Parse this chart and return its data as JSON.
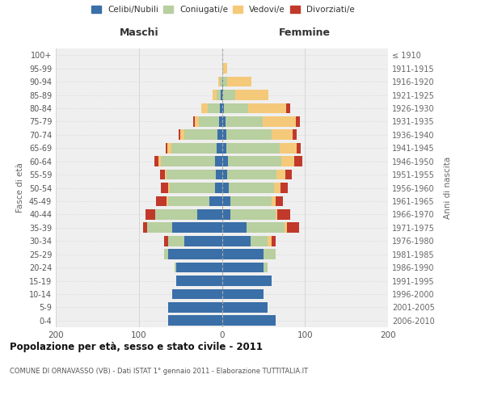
{
  "age_groups": [
    "0-4",
    "5-9",
    "10-14",
    "15-19",
    "20-24",
    "25-29",
    "30-34",
    "35-39",
    "40-44",
    "45-49",
    "50-54",
    "55-59",
    "60-64",
    "65-69",
    "70-74",
    "75-79",
    "80-84",
    "85-89",
    "90-94",
    "95-99",
    "100+"
  ],
  "birth_years": [
    "2006-2010",
    "2001-2005",
    "1996-2000",
    "1991-1995",
    "1986-1990",
    "1981-1985",
    "1976-1980",
    "1971-1975",
    "1966-1970",
    "1961-1965",
    "1956-1960",
    "1951-1955",
    "1946-1950",
    "1941-1945",
    "1936-1940",
    "1931-1935",
    "1926-1930",
    "1921-1925",
    "1916-1920",
    "1911-1915",
    "≤ 1910"
  ],
  "maschi": {
    "celibi": [
      65,
      65,
      60,
      55,
      55,
      65,
      45,
      60,
      30,
      15,
      8,
      7,
      8,
      6,
      5,
      3,
      2,
      1,
      0,
      0,
      0
    ],
    "coniugati": [
      0,
      0,
      0,
      0,
      2,
      5,
      20,
      30,
      50,
      50,
      55,
      60,
      65,
      55,
      40,
      25,
      15,
      5,
      2,
      0,
      0
    ],
    "vedovi": [
      0,
      0,
      0,
      0,
      0,
      0,
      0,
      0,
      0,
      2,
      2,
      2,
      3,
      5,
      5,
      5,
      8,
      5,
      2,
      0,
      0
    ],
    "divorziati": [
      0,
      0,
      0,
      0,
      0,
      0,
      5,
      5,
      12,
      12,
      8,
      5,
      5,
      2,
      2,
      2,
      0,
      0,
      0,
      0,
      0
    ]
  },
  "femmine": {
    "nubili": [
      65,
      55,
      50,
      60,
      50,
      50,
      35,
      30,
      10,
      10,
      8,
      6,
      7,
      5,
      5,
      4,
      2,
      1,
      1,
      0,
      0
    ],
    "coniugate": [
      0,
      0,
      0,
      0,
      5,
      15,
      20,
      45,
      55,
      50,
      55,
      60,
      65,
      65,
      55,
      45,
      30,
      15,
      5,
      1,
      0
    ],
    "vedove": [
      0,
      0,
      0,
      0,
      0,
      0,
      5,
      3,
      2,
      5,
      8,
      10,
      15,
      20,
      25,
      40,
      45,
      40,
      30,
      5,
      0
    ],
    "divorziate": [
      0,
      0,
      0,
      0,
      0,
      0,
      5,
      15,
      15,
      8,
      8,
      8,
      10,
      5,
      5,
      5,
      5,
      0,
      0,
      0,
      0
    ]
  },
  "colors": {
    "celibi": "#3a6fa8",
    "coniugati": "#b8cfa0",
    "vedovi": "#f5c97a",
    "divorziati": "#c0392b"
  },
  "xlim": 200,
  "title": "Popolazione per età, sesso e stato civile - 2011",
  "subtitle": "COMUNE DI ORNAVASSO (VB) - Dati ISTAT 1° gennaio 2011 - Elaborazione TUTTITALIA.IT",
  "ylabel_left": "Fasce di età",
  "ylabel_right": "Anni di nascita",
  "header_maschi": "Maschi",
  "header_femmine": "Femmine",
  "bg_color": "#efefef"
}
